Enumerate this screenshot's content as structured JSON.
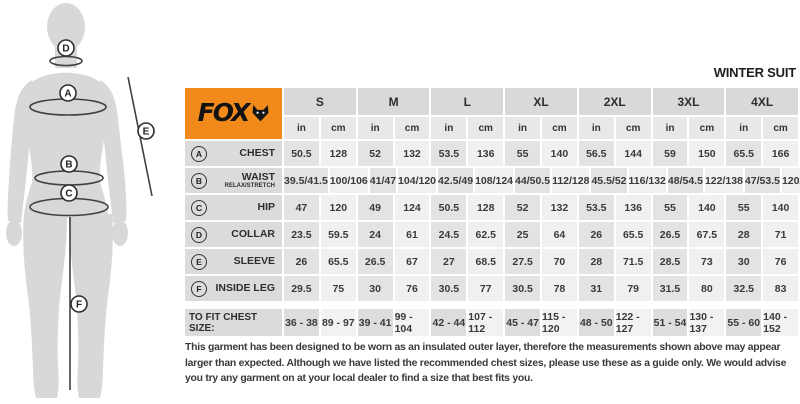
{
  "title": "WINTER SUIT",
  "brand": {
    "name": "FOX"
  },
  "colors": {
    "accent_orange": "#F28A1B",
    "silhouette_gray": "#D6D8DA",
    "line_dark": "#404040"
  },
  "diagram": {
    "points": [
      {
        "letter": "A"
      },
      {
        "letter": "B"
      },
      {
        "letter": "C"
      },
      {
        "letter": "D"
      },
      {
        "letter": "E"
      },
      {
        "letter": "F"
      }
    ]
  },
  "table": {
    "sizes": [
      "S",
      "M",
      "L",
      "XL",
      "2XL",
      "3XL",
      "4XL"
    ],
    "units": [
      "in",
      "cm"
    ],
    "rows": [
      {
        "letter": "A",
        "label": "CHEST",
        "sublabel": "",
        "values": [
          "50.5",
          "128",
          "52",
          "132",
          "53.5",
          "136",
          "55",
          "140",
          "56.5",
          "144",
          "59",
          "150",
          "65.5",
          "166"
        ]
      },
      {
        "letter": "B",
        "label": "WAIST",
        "sublabel": "RELAX/STRETCH",
        "values": [
          "39.5/41.5",
          "100/106",
          "41/47",
          "104/120",
          "42.5/49",
          "108/124",
          "44/50.5",
          "112/128",
          "45.5/52",
          "116/132",
          "48/54.5",
          "122/138",
          "47/53.5",
          "120/136"
        ]
      },
      {
        "letter": "C",
        "label": "HIP",
        "sublabel": "",
        "values": [
          "47",
          "120",
          "49",
          "124",
          "50.5",
          "128",
          "52",
          "132",
          "53.5",
          "136",
          "55",
          "140",
          "55",
          "140"
        ]
      },
      {
        "letter": "D",
        "label": "COLLAR",
        "sublabel": "",
        "values": [
          "23.5",
          "59.5",
          "24",
          "61",
          "24.5",
          "62.5",
          "25",
          "64",
          "26",
          "65.5",
          "26.5",
          "67.5",
          "28",
          "71"
        ]
      },
      {
        "letter": "E",
        "label": "SLEEVE",
        "sublabel": "",
        "values": [
          "26",
          "65.5",
          "26.5",
          "67",
          "27",
          "68.5",
          "27.5",
          "70",
          "28",
          "71.5",
          "28.5",
          "73",
          "30",
          "76"
        ]
      },
      {
        "letter": "F",
        "label": "INSIDE LEG",
        "sublabel": "",
        "values": [
          "29.5",
          "75",
          "30",
          "76",
          "30.5",
          "77",
          "30.5",
          "78",
          "31",
          "79",
          "31.5",
          "80",
          "32.5",
          "83"
        ]
      }
    ],
    "fit_row": {
      "label": "TO FIT CHEST SIZE:",
      "values": [
        "36 - 38",
        "89 - 97",
        "39 - 41",
        "99 - 104",
        "42 - 44",
        "107 - 112",
        "45 - 47",
        "115 - 120",
        "48 - 50",
        "122 - 127",
        "51 - 54",
        "130 - 137",
        "55 - 60",
        "140 - 152"
      ]
    }
  },
  "disclaimer": "This garment has been designed to be worn as an insulated outer layer, therefore the measurements shown above may appear larger than expected. Although we have listed the recommended chest sizes, please use these as a guide only. We would advise you try any garment on at your local dealer to find a size that best fits you."
}
